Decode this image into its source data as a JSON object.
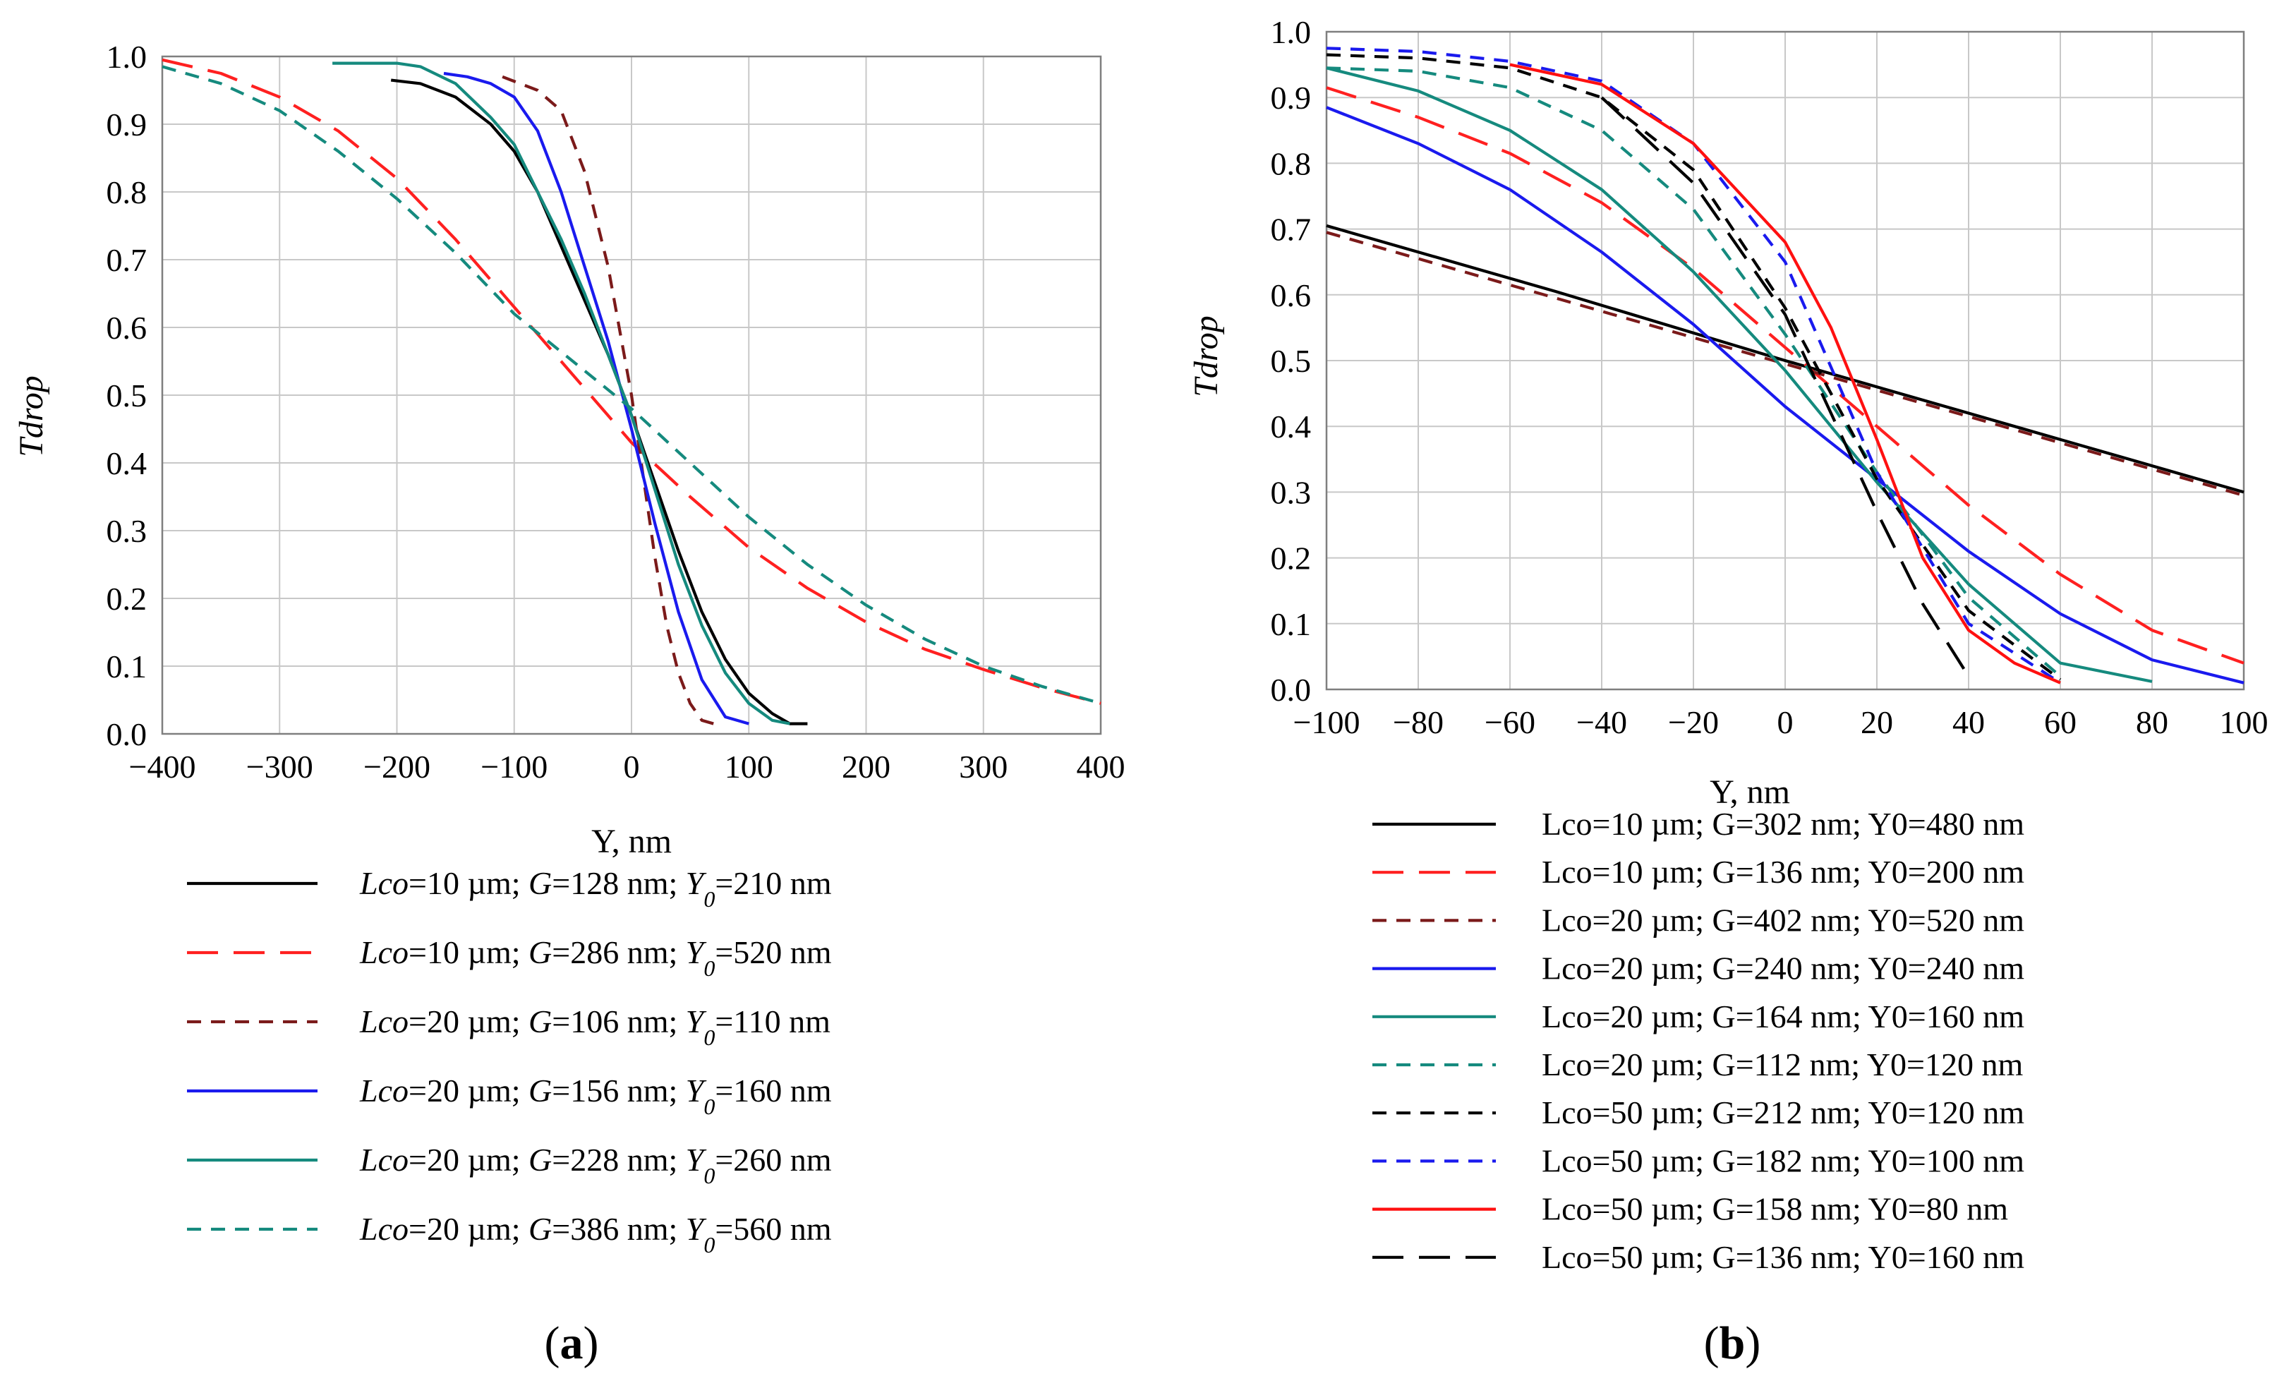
{
  "chart_data": [
    {
      "panel": "a",
      "type": "line",
      "xlabel": "Y, nm",
      "ylabel": "Tdrop",
      "xlim": [
        -400,
        400
      ],
      "ylim": [
        0.0,
        1.0
      ],
      "xticks": [
        "−400",
        "−300",
        "−200",
        "−100",
        "0",
        "100",
        "200",
        "300",
        "400"
      ],
      "yticks": [
        "0.0",
        "0.1",
        "0.2",
        "0.3",
        "0.4",
        "0.5",
        "0.6",
        "0.7",
        "0.8",
        "0.9",
        "1.0"
      ],
      "grid": true,
      "legend_position": "below",
      "series": [
        {
          "name": "Lco=10 µm; G=128 nm; Y0=210 nm",
          "legend": [
            {
              "t": "Lco",
              "i": true
            },
            {
              "t": "=10 µm; "
            },
            {
              "t": "G",
              "i": true
            },
            {
              "t": "=128 nm; "
            },
            {
              "t": "Y",
              "i": true
            },
            {
              "t": "0",
              "i": true,
              "sub": true
            },
            {
              "t": "=210 nm"
            }
          ],
          "color": "#000000",
          "dash": "solid",
          "x": [
            -205,
            -180,
            -150,
            -120,
            -100,
            -80,
            -60,
            -40,
            -20,
            0,
            20,
            40,
            60,
            80,
            100,
            120,
            135,
            150
          ],
          "y": [
            0.965,
            0.96,
            0.94,
            0.9,
            0.86,
            0.8,
            0.72,
            0.64,
            0.56,
            0.47,
            0.37,
            0.27,
            0.18,
            0.11,
            0.06,
            0.03,
            0.015,
            0.015
          ]
        },
        {
          "name": "Lco=10 µm; G=286 nm; Y0=520 nm",
          "legend": [
            {
              "t": "Lco",
              "i": true
            },
            {
              "t": "=10 µm; "
            },
            {
              "t": "G",
              "i": true
            },
            {
              "t": "=286 nm; "
            },
            {
              "t": "Y",
              "i": true
            },
            {
              "t": "0",
              "i": true,
              "sub": true
            },
            {
              "t": "=520 nm"
            }
          ],
          "color": "#ff2020",
          "dash": "long",
          "x": [
            -400,
            -350,
            -300,
            -250,
            -200,
            -150,
            -100,
            -50,
            0,
            50,
            100,
            150,
            200,
            250,
            300,
            350,
            400
          ],
          "y": [
            0.995,
            0.975,
            0.94,
            0.89,
            0.82,
            0.73,
            0.63,
            0.53,
            0.43,
            0.35,
            0.275,
            0.215,
            0.165,
            0.125,
            0.095,
            0.068,
            0.045
          ]
        },
        {
          "name": "Lco=20 µm; G=106 nm; Y0=110 nm",
          "legend": [
            {
              "t": "Lco",
              "i": true
            },
            {
              "t": "=20 µm; "
            },
            {
              "t": "G",
              "i": true
            },
            {
              "t": "=106 nm; "
            },
            {
              "t": "Y",
              "i": true
            },
            {
              "t": "0",
              "i": true,
              "sub": true
            },
            {
              "t": "=110 nm"
            }
          ],
          "color": "#7b1a1a",
          "dash": "short",
          "x": [
            -110,
            -80,
            -60,
            -40,
            -20,
            0,
            10,
            20,
            30,
            40,
            50,
            60,
            70
          ],
          "y": [
            0.97,
            0.95,
            0.92,
            0.83,
            0.69,
            0.5,
            0.38,
            0.26,
            0.16,
            0.09,
            0.045,
            0.02,
            0.015
          ]
        },
        {
          "name": "Lco=20 µm; G=156 nm; Y0=160 nm",
          "legend": [
            {
              "t": "Lco",
              "i": true
            },
            {
              "t": "=20 µm; "
            },
            {
              "t": "G",
              "i": true
            },
            {
              "t": "=156 nm; "
            },
            {
              "t": "Y",
              "i": true
            },
            {
              "t": "0",
              "i": true,
              "sub": true
            },
            {
              "t": "=160 nm"
            }
          ],
          "color": "#1a1aee",
          "dash": "solid",
          "x": [
            -160,
            -140,
            -120,
            -100,
            -80,
            -60,
            -40,
            -20,
            0,
            20,
            40,
            60,
            80,
            100
          ],
          "y": [
            0.975,
            0.97,
            0.96,
            0.94,
            0.89,
            0.8,
            0.69,
            0.58,
            0.45,
            0.31,
            0.18,
            0.08,
            0.025,
            0.015
          ]
        },
        {
          "name": "Lco=20 µm; G=228 nm; Y0=260 nm",
          "legend": [
            {
              "t": "Lco",
              "i": true
            },
            {
              "t": "=20 µm; "
            },
            {
              "t": "G",
              "i": true
            },
            {
              "t": "=228 nm; "
            },
            {
              "t": "Y",
              "i": true
            },
            {
              "t": "0",
              "i": true,
              "sub": true
            },
            {
              "t": "=260 nm"
            }
          ],
          "color": "#158a7e",
          "dash": "solid",
          "x": [
            -255,
            -200,
            -180,
            -150,
            -120,
            -100,
            -80,
            -60,
            -40,
            -20,
            0,
            20,
            40,
            60,
            80,
            100,
            120,
            135
          ],
          "y": [
            0.99,
            0.99,
            0.985,
            0.96,
            0.91,
            0.87,
            0.8,
            0.73,
            0.65,
            0.56,
            0.47,
            0.36,
            0.25,
            0.16,
            0.09,
            0.045,
            0.02,
            0.015
          ]
        },
        {
          "name": "Lco=20 µm; G=386 nm; Y0=560 nm",
          "legend": [
            {
              "t": "Lco",
              "i": true
            },
            {
              "t": "=20 µm; "
            },
            {
              "t": "G",
              "i": true
            },
            {
              "t": "=386 nm; "
            },
            {
              "t": "Y",
              "i": true
            },
            {
              "t": "0",
              "i": true,
              "sub": true
            },
            {
              "t": "=560 nm"
            }
          ],
          "color": "#158a7e",
          "dash": "short",
          "x": [
            -400,
            -350,
            -300,
            -250,
            -200,
            -150,
            -100,
            -50,
            0,
            50,
            100,
            150,
            200,
            250,
            300,
            350,
            400
          ],
          "y": [
            0.985,
            0.96,
            0.92,
            0.86,
            0.79,
            0.71,
            0.62,
            0.55,
            0.48,
            0.4,
            0.32,
            0.25,
            0.19,
            0.14,
            0.1,
            0.07,
            0.045
          ]
        }
      ]
    },
    {
      "panel": "b",
      "type": "line",
      "xlabel": "Y, nm",
      "ylabel": "Tdrop",
      "xlim": [
        -100,
        100
      ],
      "ylim": [
        0.0,
        1.0
      ],
      "xticks": [
        "−100",
        "−80",
        "−60",
        "−40",
        "−20",
        "0",
        "20",
        "40",
        "60",
        "80",
        "100"
      ],
      "yticks": [
        "0.0",
        "0.1",
        "0.2",
        "0.3",
        "0.4",
        "0.5",
        "0.6",
        "0.7",
        "0.8",
        "0.9",
        "1.0"
      ],
      "grid": true,
      "legend_position": "below",
      "series": [
        {
          "name": "Lco=10 µm; G=302 nm; Y0=480 nm",
          "legend": [
            {
              "t": "Lco=10 µm; G=302 nm; Y0=480 nm"
            }
          ],
          "color": "#000000",
          "dash": "solid",
          "x": [
            -100,
            -50,
            0,
            50,
            100
          ],
          "y": [
            0.705,
            0.605,
            0.5,
            0.4,
            0.3
          ]
        },
        {
          "name": "Lco=10 µm; G=136 nm; Y0=200 nm",
          "legend": [
            {
              "t": "Lco=10 µm; G=136 nm; Y0=200 nm"
            }
          ],
          "color": "#ff2020",
          "dash": "long",
          "x": [
            -100,
            -80,
            -60,
            -40,
            -20,
            0,
            20,
            40,
            60,
            80,
            100
          ],
          "y": [
            0.915,
            0.87,
            0.815,
            0.74,
            0.64,
            0.52,
            0.4,
            0.28,
            0.175,
            0.09,
            0.04
          ]
        },
        {
          "name": "Lco=20 µm; G=402 nm; Y0=520 nm",
          "legend": [
            {
              "t": "Lco=20 µm; G=402 nm; Y0=520 nm"
            }
          ],
          "color": "#7b1a1a",
          "dash": "short",
          "x": [
            -100,
            -50,
            0,
            50,
            100
          ],
          "y": [
            0.695,
            0.595,
            0.495,
            0.395,
            0.295
          ]
        },
        {
          "name": "Lco=20 µm; G=240 nm; Y0=240 nm",
          "legend": [
            {
              "t": "Lco=20 µm; G=240 nm; Y0=240 nm"
            }
          ],
          "color": "#1a1aee",
          "dash": "solid",
          "x": [
            -100,
            -80,
            -60,
            -40,
            -20,
            0,
            20,
            40,
            60,
            80,
            100
          ],
          "y": [
            0.885,
            0.83,
            0.76,
            0.665,
            0.555,
            0.43,
            0.32,
            0.21,
            0.115,
            0.045,
            0.01
          ]
        },
        {
          "name": "Lco=20 µm; G=164 nm; Y0=160 nm",
          "legend": [
            {
              "t": "Lco=20 µm; G=164 nm; Y0=160 nm"
            }
          ],
          "color": "#158a7e",
          "dash": "solid",
          "x": [
            -100,
            -80,
            -60,
            -40,
            -20,
            0,
            20,
            40,
            60,
            80
          ],
          "y": [
            0.945,
            0.91,
            0.85,
            0.76,
            0.635,
            0.485,
            0.315,
            0.16,
            0.04,
            0.012
          ]
        },
        {
          "name": "Lco=20 µm; G=112 nm; Y0=120 nm",
          "legend": [
            {
              "t": "Lco=20 µm; G=112 nm; Y0=120 nm"
            }
          ],
          "color": "#158a7e",
          "dash": "short",
          "x": [
            -100,
            -80,
            -60,
            -40,
            -20,
            0,
            20,
            40,
            60
          ],
          "y": [
            0.945,
            0.94,
            0.915,
            0.85,
            0.73,
            0.54,
            0.33,
            0.14,
            0.02
          ]
        },
        {
          "name": "Lco=50 µm; G=212 nm; Y0=120 nm",
          "legend": [
            {
              "t": "Lco=50 µm; G=212 nm; Y0=120 nm"
            }
          ],
          "color": "#000000",
          "dash": "short",
          "x": [
            -100,
            -80,
            -60,
            -40,
            -20,
            0,
            20,
            40,
            60
          ],
          "y": [
            0.965,
            0.96,
            0.945,
            0.9,
            0.79,
            0.58,
            0.32,
            0.12,
            0.015
          ]
        },
        {
          "name": "Lco=50 µm; G=182 nm; Y0=100 nm",
          "legend": [
            {
              "t": "Lco=50 µm; G=182 nm; Y0=100 nm"
            }
          ],
          "color": "#1a1aee",
          "dash": "short",
          "x": [
            -100,
            -80,
            -60,
            -40,
            -20,
            0,
            20,
            40,
            60
          ],
          "y": [
            0.975,
            0.97,
            0.955,
            0.925,
            0.83,
            0.65,
            0.33,
            0.1,
            0.01
          ]
        },
        {
          "name": "Lco=50 µm; G=158 nm; Y0=80 nm",
          "legend": [
            {
              "t": "Lco=50 µm; G=158 nm; Y0=80 nm"
            }
          ],
          "color": "#ff1010",
          "dash": "solid",
          "x": [
            -60,
            -40,
            -20,
            0,
            10,
            20,
            30,
            40,
            50,
            60
          ],
          "y": [
            0.95,
            0.92,
            0.83,
            0.68,
            0.55,
            0.38,
            0.2,
            0.09,
            0.04,
            0.01
          ]
        },
        {
          "name": "Lco=50 µm; G=136 nm; Y0=160 nm",
          "legend": [
            {
              "t": "Lco=50 µm; G=136 nm; Y0=160 nm"
            }
          ],
          "color": "#000000",
          "dash": "long",
          "x": [
            -40,
            -20,
            0,
            10,
            20,
            30,
            40
          ],
          "y": [
            0.9,
            0.77,
            0.57,
            0.42,
            0.27,
            0.13,
            0.02
          ]
        }
      ]
    }
  ],
  "labels": {
    "a": "a",
    "b": "b"
  }
}
